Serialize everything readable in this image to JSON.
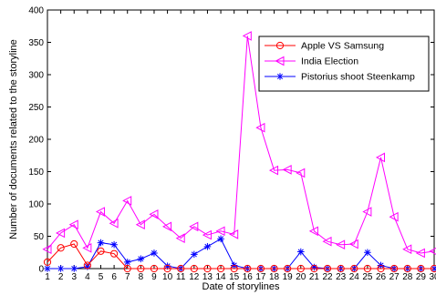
{
  "chart_data": {
    "type": "line",
    "title": "",
    "xlabel": "Date of storylines",
    "ylabel": "Number of documents related to the storyline",
    "xlim": [
      1,
      30
    ],
    "ylim": [
      0,
      400
    ],
    "x": [
      1,
      2,
      3,
      4,
      5,
      6,
      7,
      8,
      9,
      10,
      11,
      12,
      13,
      14,
      15,
      16,
      17,
      18,
      19,
      20,
      21,
      22,
      23,
      24,
      25,
      26,
      27,
      28,
      29,
      30
    ],
    "x_ticks": [
      "1",
      "2",
      "3",
      "4",
      "5",
      "6",
      "7",
      "8",
      "9",
      "10",
      "11",
      "12",
      "13",
      "14",
      "15",
      "16",
      "17",
      "18",
      "19",
      "20",
      "21",
      "22",
      "23",
      "24",
      "25",
      "26",
      "27",
      "28",
      "29",
      "30"
    ],
    "y_ticks": [
      "0",
      "50",
      "100",
      "150",
      "200",
      "250",
      "300",
      "350",
      "400"
    ],
    "grid": false,
    "legend_position": "top-right",
    "series": [
      {
        "name": "Apple VS Samsung",
        "color": "#ff0000",
        "marker": "circle",
        "values": [
          10,
          32,
          38,
          5,
          27,
          23,
          0,
          0,
          0,
          0,
          0,
          0,
          0,
          0,
          0,
          0,
          0,
          0,
          0,
          0,
          0,
          0,
          0,
          0,
          0,
          0,
          0,
          0,
          0,
          0
        ]
      },
      {
        "name": "India Election",
        "color": "#ff00ff",
        "marker": "triangle-left",
        "values": [
          30,
          55,
          68,
          32,
          88,
          70,
          105,
          68,
          84,
          65,
          47,
          65,
          52,
          58,
          53,
          360,
          218,
          152,
          153,
          148,
          58,
          42,
          37,
          38,
          88,
          172,
          80,
          30,
          24,
          27
        ]
      },
      {
        "name": "Pistorius shoot Steenkamp",
        "color": "#0000ff",
        "marker": "star",
        "values": [
          0,
          0,
          0,
          3,
          40,
          37,
          10,
          15,
          24,
          4,
          0,
          22,
          34,
          46,
          5,
          0,
          0,
          0,
          0,
          26,
          2,
          0,
          0,
          0,
          25,
          5,
          0,
          0,
          0,
          0
        ]
      }
    ]
  }
}
